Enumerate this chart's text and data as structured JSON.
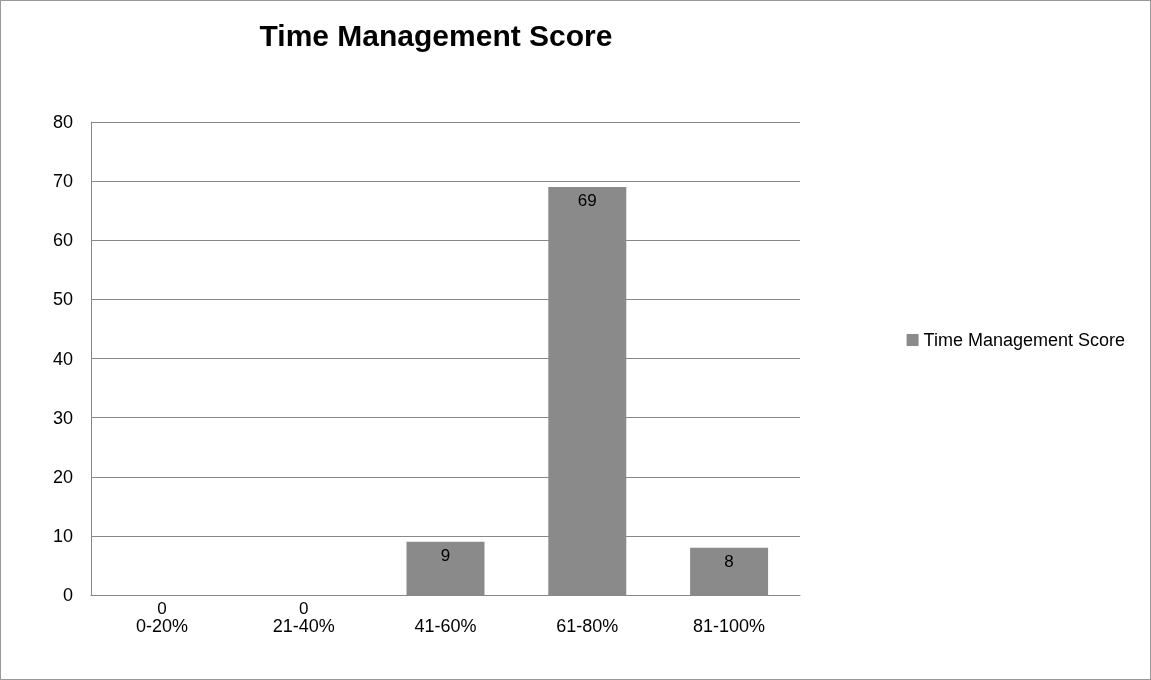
{
  "chart_data": {
    "type": "bar",
    "title": "Time Management Score",
    "categories": [
      "0-20%",
      "21-40%",
      "41-60%",
      "61-80%",
      "81-100%"
    ],
    "series": [
      {
        "name": "Time Management Score",
        "color": "#8a8a8a",
        "values": [
          0,
          0,
          9,
          69,
          8
        ]
      }
    ],
    "ylim": [
      0,
      80
    ],
    "yticks": [
      0,
      10,
      20,
      30,
      40,
      50,
      60,
      70,
      80
    ],
    "grid": "y",
    "legend": "right",
    "data_labels": true
  }
}
